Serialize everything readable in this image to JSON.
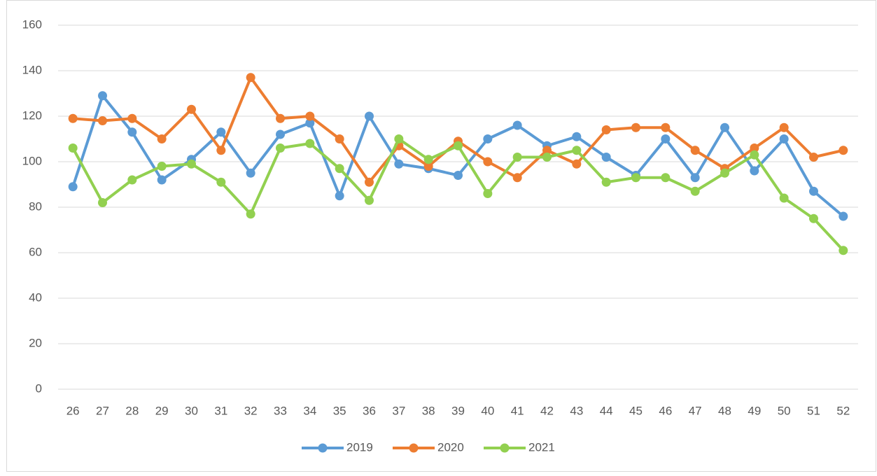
{
  "chart_data": {
    "type": "line",
    "categories": [
      "26",
      "27",
      "28",
      "29",
      "30",
      "31",
      "32",
      "33",
      "34",
      "35",
      "36",
      "37",
      "38",
      "39",
      "40",
      "41",
      "42",
      "43",
      "44",
      "45",
      "46",
      "47",
      "48",
      "49",
      "50",
      "51",
      "52"
    ],
    "series": [
      {
        "name": "2019",
        "color": "#5b9bd5",
        "values": [
          89,
          129,
          113,
          92,
          101,
          113,
          95,
          112,
          117,
          85,
          120,
          99,
          97,
          94,
          110,
          116,
          107,
          111,
          102,
          94,
          110,
          93,
          115,
          96,
          110,
          87,
          76
        ]
      },
      {
        "name": "2020",
        "color": "#ed7d31",
        "values": [
          119,
          118,
          119,
          110,
          123,
          105,
          137,
          119,
          120,
          110,
          91,
          107,
          98,
          109,
          100,
          93,
          105,
          99,
          114,
          115,
          115,
          105,
          97,
          106,
          115,
          102,
          105
        ]
      },
      {
        "name": "2021",
        "color": "#92d050",
        "values": [
          106,
          82,
          92,
          98,
          99,
          91,
          77,
          106,
          108,
          97,
          83,
          110,
          101,
          107,
          86,
          102,
          102,
          105,
          91,
          93,
          93,
          87,
          95,
          103,
          84,
          75,
          61
        ]
      }
    ],
    "ylim": [
      0,
      160
    ],
    "yticks": [
      0,
      20,
      40,
      60,
      80,
      100,
      120,
      140,
      160
    ],
    "grid": true,
    "legend": "bottom"
  }
}
